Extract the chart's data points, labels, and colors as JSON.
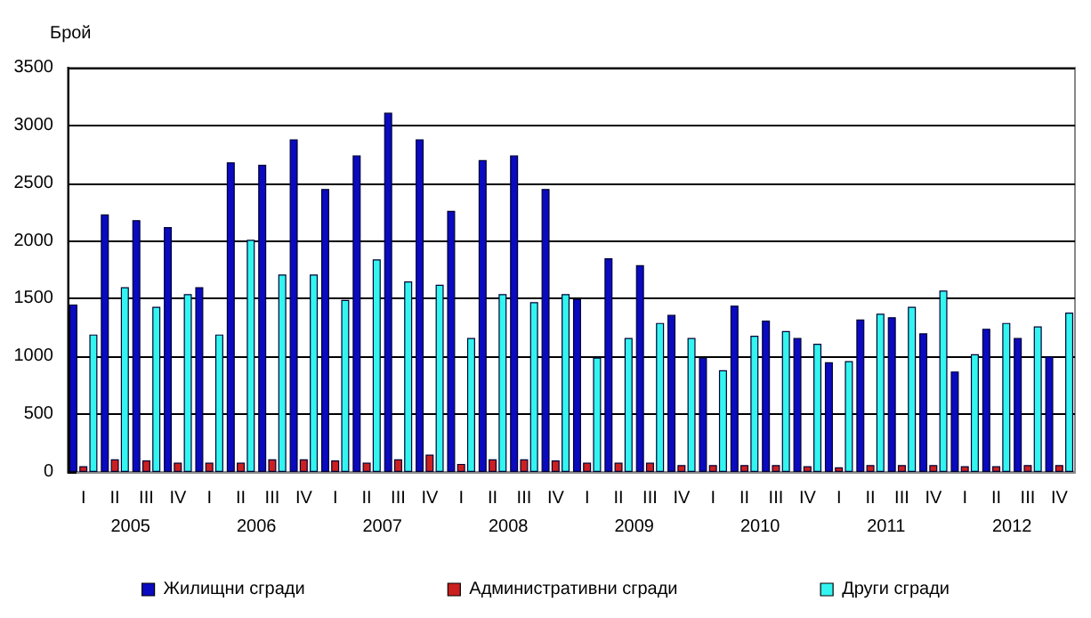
{
  "chart_data": {
    "type": "bar",
    "ylabel": "Брой",
    "categories": [
      "I",
      "II",
      "III",
      "IV",
      "I",
      "II",
      "III",
      "IV",
      "I",
      "II",
      "III",
      "IV",
      "I",
      "II",
      "III",
      "IV",
      "I",
      "II",
      "III",
      "IV",
      "I",
      "II",
      "III",
      "IV",
      "I",
      "II",
      "III",
      "IV",
      "I",
      "II",
      "III",
      "IV"
    ],
    "series": [
      {
        "name": "Жилищни сгради",
        "color": "#0a0ac0",
        "values": [
          1450,
          2230,
          2180,
          2120,
          1600,
          2680,
          2660,
          2880,
          2450,
          2740,
          3110,
          2880,
          2260,
          2700,
          2740,
          2450,
          1500,
          1850,
          1790,
          1360,
          990,
          1440,
          1310,
          1160,
          950,
          1320,
          1340,
          1200,
          870,
          1240,
          1160,
          1000
        ]
      },
      {
        "name": "Административни сгради",
        "color": "#cc2020",
        "values": [
          50,
          110,
          100,
          80,
          80,
          80,
          110,
          110,
          100,
          80,
          110,
          150,
          70,
          110,
          110,
          100,
          80,
          80,
          80,
          60,
          60,
          60,
          60,
          50,
          40,
          60,
          60,
          60,
          50,
          50,
          60,
          60
        ]
      },
      {
        "name": "Други сгради",
        "color": "#33f5f0",
        "values": [
          1190,
          1600,
          1430,
          1540,
          1190,
          2010,
          1710,
          1710,
          1490,
          1840,
          1650,
          1620,
          1160,
          1540,
          1470,
          1540,
          990,
          1160,
          1290,
          1160,
          880,
          1180,
          1220,
          1110,
          960,
          1370,
          1430,
          1570,
          1020,
          1290,
          1260,
          1380
        ]
      }
    ],
    "annotations": [
      "2005",
      "2006",
      "2007",
      "2008",
      "2009",
      "2010",
      "2011",
      "2012"
    ],
    "ylim": [
      0,
      3500
    ],
    "yticks": [
      0,
      500,
      1000,
      1500,
      2000,
      2500,
      3000,
      3500
    ],
    "grid": "y",
    "legend": "bottom"
  }
}
